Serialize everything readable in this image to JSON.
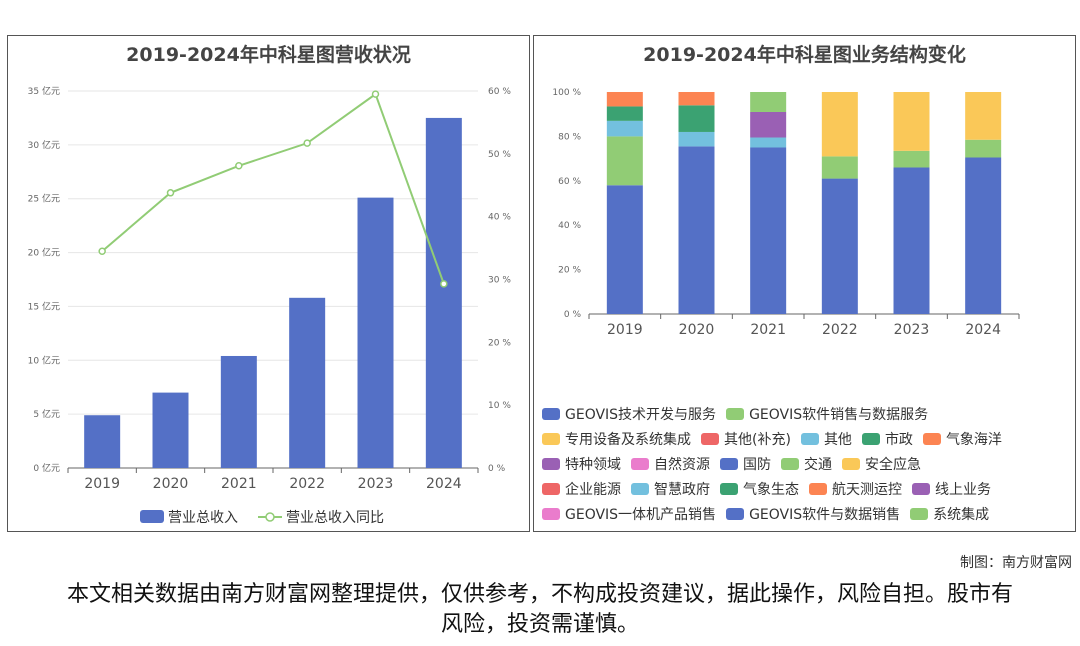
{
  "left_chart": {
    "title": "2019-2024年中科星图营收状况",
    "chart_data": {
      "type": "bar",
      "categories": [
        "2019",
        "2020",
        "2021",
        "2022",
        "2023",
        "2024"
      ],
      "series": [
        {
          "name": "营业总收入",
          "kind": "bar",
          "unit": "亿元",
          "values": [
            4.9,
            7.0,
            10.4,
            15.8,
            25.1,
            32.5
          ],
          "color": "#5470c6"
        },
        {
          "name": "营业总收入同比",
          "kind": "line",
          "unit": "%",
          "values": [
            34.5,
            43.8,
            48.1,
            51.7,
            59.5,
            29.3
          ],
          "color": "#91cc75"
        }
      ],
      "y_left": {
        "min": 0,
        "max": 35,
        "ticks": [
          "0 亿元",
          "5 亿元",
          "10 亿元",
          "15 亿元",
          "20 亿元",
          "25 亿元",
          "30 亿元",
          "35 亿元"
        ]
      },
      "y_right": {
        "min": 0,
        "max": 60,
        "ticks": [
          "0 %",
          "10 %",
          "20 %",
          "30 %",
          "40 %",
          "50 %",
          "60 %"
        ]
      },
      "grid": true,
      "legend_position": "bottom"
    }
  },
  "right_chart": {
    "title": "2019-2024年中科星图业务结构变化",
    "chart_data": {
      "type": "bar",
      "stacked": true,
      "categories": [
        "2019",
        "2020",
        "2021",
        "2022",
        "2023",
        "2024"
      ],
      "y_ticks": [
        "0 %",
        "20 %",
        "40 %",
        "60 %",
        "80 %",
        "100 %"
      ],
      "ylim": [
        0,
        100
      ],
      "series": [
        {
          "name": "GEOVIS技术开发与服务",
          "color": "#5470c6",
          "values": [
            58,
            75.5,
            75,
            0,
            0,
            0
          ]
        },
        {
          "name": "GEOVIS软件销售与数据服务",
          "color": "#91cc75",
          "values": [
            22,
            0,
            0,
            0,
            0,
            0
          ]
        },
        {
          "name": "专用设备及系统集成",
          "color": "#fac858",
          "values": [
            0,
            0,
            0,
            0,
            0,
            0
          ]
        },
        {
          "name": "其他(补充)",
          "color": "#ee6666",
          "values": [
            0,
            0,
            0,
            0,
            0,
            0
          ]
        },
        {
          "name": "其他",
          "color": "#73c0de",
          "values": [
            7,
            6.5,
            4.5,
            0,
            0,
            0
          ]
        },
        {
          "name": "市政",
          "color": "#3ba272",
          "values": [
            6.5,
            12,
            0,
            0,
            0,
            0
          ]
        },
        {
          "name": "气象海洋",
          "color": "#fc8452",
          "values": [
            6.5,
            6,
            0,
            0,
            0,
            0
          ]
        },
        {
          "name": "特种领域",
          "color": "#9a60b4",
          "values": [
            0,
            0,
            11.5,
            0,
            0,
            0
          ]
        },
        {
          "name": "自然资源",
          "color": "#ea7ccc",
          "values": [
            0,
            0,
            0,
            0,
            0,
            0
          ]
        },
        {
          "name": "国防",
          "color": "#5470c6",
          "values": [
            0,
            0,
            0,
            61,
            66,
            70.5
          ]
        },
        {
          "name": "交通",
          "color": "#91cc75",
          "values": [
            0,
            0,
            9,
            10,
            7.5,
            8
          ]
        },
        {
          "name": "安全应急",
          "color": "#fac858",
          "values": [
            0,
            0,
            0,
            29,
            26.5,
            21.5
          ]
        },
        {
          "name": "企业能源",
          "color": "#ee6666",
          "values": [
            0,
            0,
            0,
            0,
            0,
            0
          ]
        },
        {
          "name": "智慧政府",
          "color": "#73c0de",
          "values": [
            0,
            0,
            0,
            0,
            0,
            0
          ]
        },
        {
          "name": "气象生态",
          "color": "#3ba272",
          "values": [
            0,
            0,
            0,
            0,
            0,
            0
          ]
        },
        {
          "name": "航天测运控",
          "color": "#fc8452",
          "values": [
            0,
            0,
            0,
            0,
            0,
            0
          ]
        },
        {
          "name": "线上业务",
          "color": "#9a60b4",
          "values": [
            0,
            0,
            0,
            0,
            0,
            0
          ]
        },
        {
          "name": "GEOVIS一体机产品销售",
          "color": "#ea7ccc",
          "values": [
            0,
            0,
            0,
            0,
            0,
            0
          ]
        },
        {
          "name": "GEOVIS软件与数据销售",
          "color": "#5470c6",
          "values": [
            0,
            0,
            0,
            0,
            0,
            0
          ]
        },
        {
          "name": "系统集成",
          "color": "#91cc75",
          "values": [
            0,
            0,
            0,
            0,
            0,
            0
          ]
        }
      ],
      "grid": false,
      "legend_position": "bottom"
    }
  },
  "credit": "制图：南方财富网",
  "disclaimer": "本文相关数据由南方财富网整理提供，仅供参考，不构成投资建议，据此操作，风险自担。股市有风险，投资需谨慎。"
}
